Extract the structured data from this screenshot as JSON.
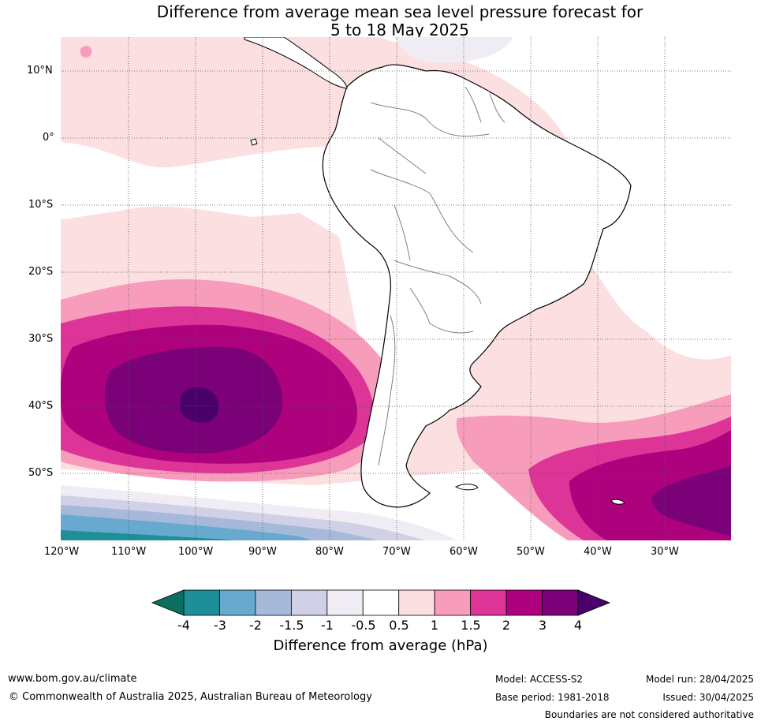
{
  "title_line1": "Difference from average mean sea level pressure forecast for",
  "title_line2": "5 to 18 May 2025",
  "map": {
    "lat_labels": [
      "10°N",
      "0°",
      "10°S",
      "20°S",
      "30°S",
      "40°S",
      "50°S"
    ],
    "lon_labels": [
      "120°W",
      "110°W",
      "100°W",
      "90°W",
      "80°W",
      "70°W",
      "60°W",
      "50°W",
      "40°W",
      "30°W"
    ]
  },
  "colorbar": {
    "ticks": [
      "-4",
      "-3",
      "-2",
      "-1.5",
      "-1",
      "-0.5",
      "0.5",
      "1",
      "1.5",
      "2",
      "3",
      "4"
    ],
    "colors": [
      "#1e8f99",
      "#67a9cf",
      "#a6b9d9",
      "#d0d1e6",
      "#efecf3",
      "#ffffff",
      "#fcdfe0",
      "#f79cbb",
      "#dd3498",
      "#ae017e",
      "#7a0177",
      "#49006a"
    ],
    "under_color": "#0b6e5f",
    "over_color": "#49006a",
    "label": "Difference from average (hPa)"
  },
  "footer": {
    "url": "www.bom.gov.au/climate",
    "copyright": "© Commonwealth of Australia 2025, Australian Bureau of Meteorology",
    "model": "Model: ACCESS-S2",
    "base_period": "Base period: 1981-2018",
    "model_run": "Model run: 28/04/2025",
    "issued": "Issued: 30/04/2025",
    "boundaries_note": "Boundaries are not considered authoritative"
  }
}
